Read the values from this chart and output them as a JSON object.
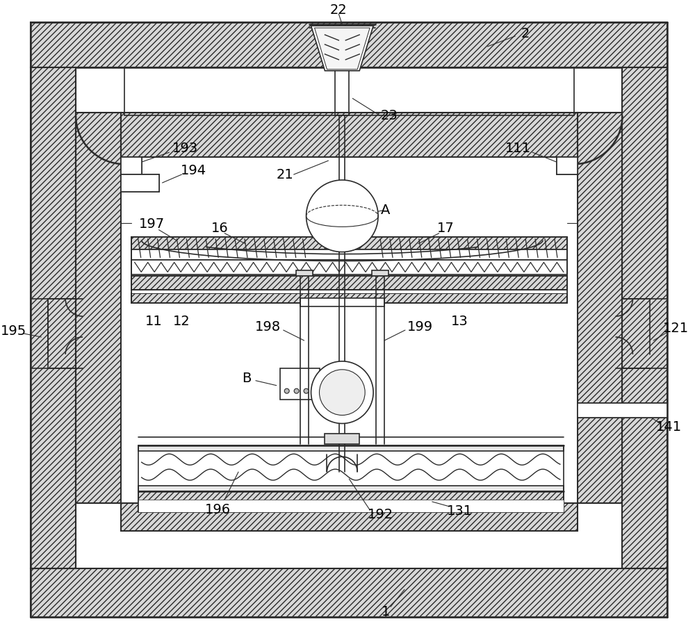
{
  "bg_color": "#ffffff",
  "lc": "#2a2a2a",
  "fig_width": 10.0,
  "fig_height": 9.21,
  "hatch_fc": "#d8d8d8"
}
